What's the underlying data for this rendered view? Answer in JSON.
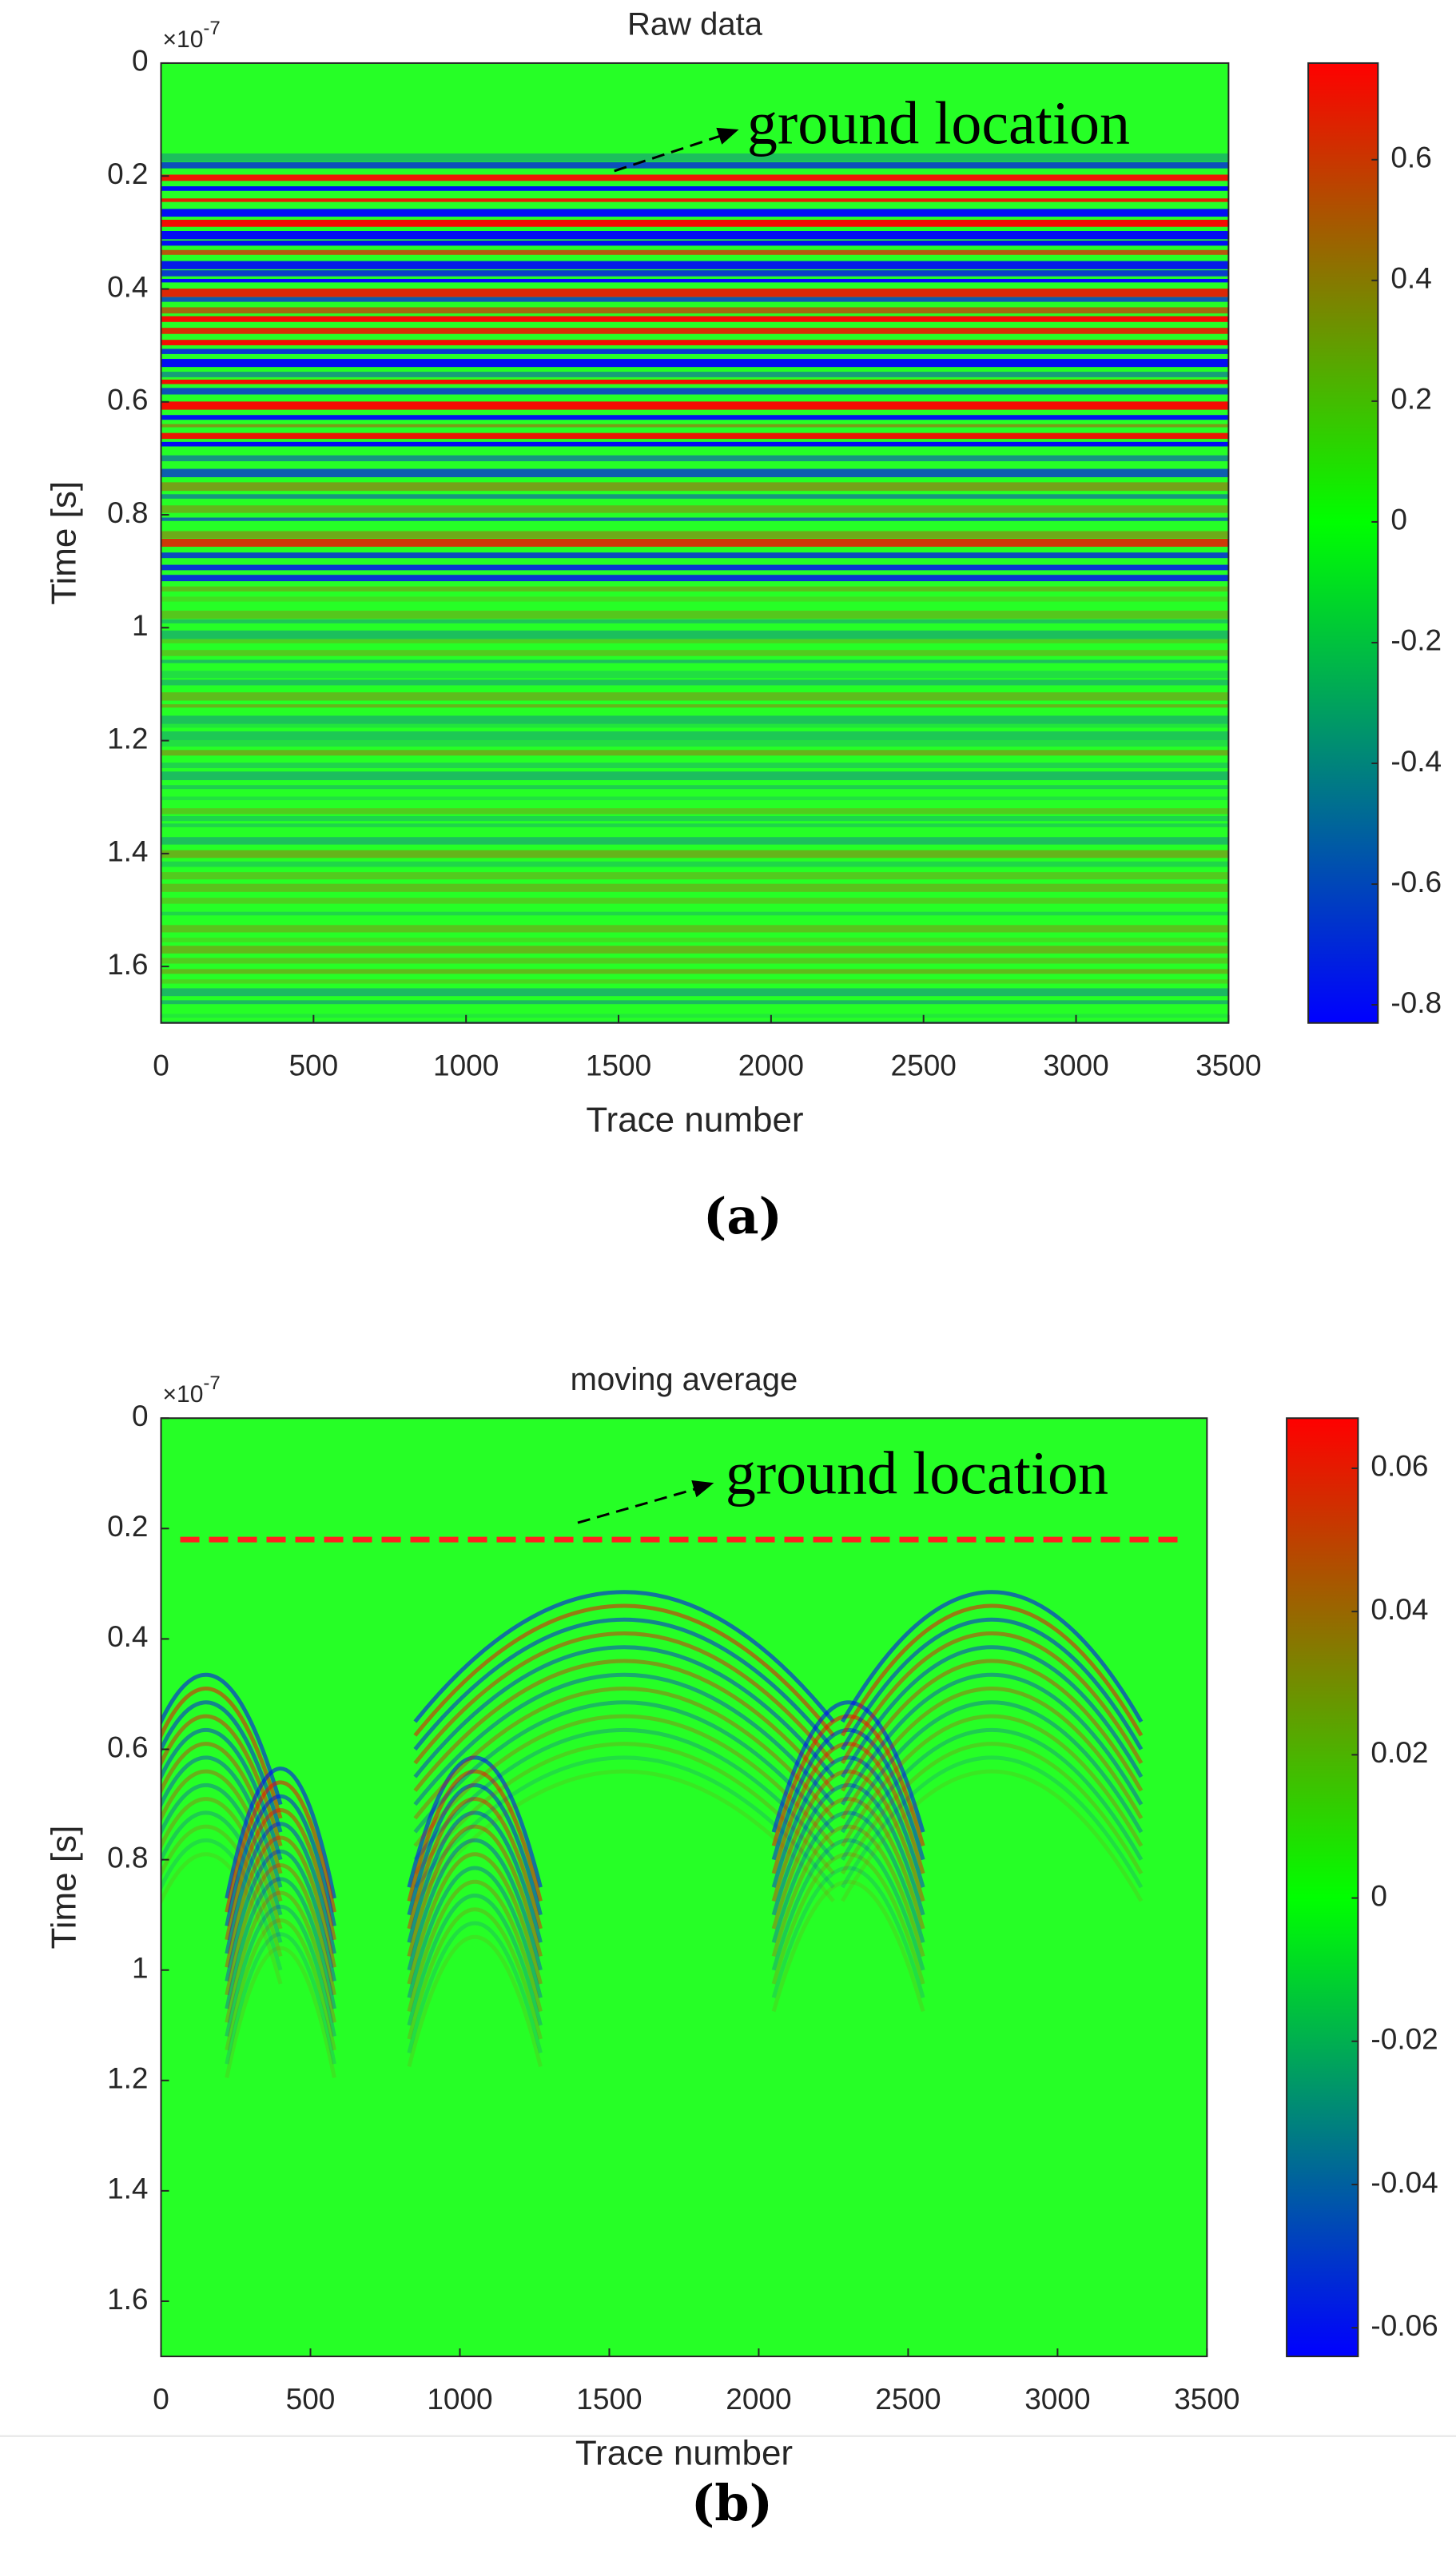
{
  "chart_data": [
    {
      "type": "heatmap",
      "title": "Raw data",
      "x_label": "Trace number",
      "y_label": "Time [s]",
      "y_multiplier": "×10",
      "y_exponent": "-7",
      "xlim": [
        0,
        3500
      ],
      "xticks": [
        0,
        500,
        1000,
        1500,
        2000,
        2500,
        3000,
        3500
      ],
      "ylim": [
        0,
        1.7
      ],
      "yticks": [
        0,
        0.2,
        0.4,
        0.6,
        0.8,
        1,
        1.2,
        1.4,
        1.6
      ],
      "clim": [
        -0.83,
        0.76
      ],
      "cticks": [
        -0.8,
        -0.6,
        -0.4,
        -0.2,
        0,
        0.2,
        0.4,
        0.6
      ],
      "colormap": [
        "#0000ff",
        "#00ff00",
        "#ff0000"
      ],
      "annotation": "ground location",
      "caption": "(a)"
    },
    {
      "type": "heatmap",
      "title": "moving average",
      "x_label": "Trace number",
      "y_label": "Time [s]",
      "y_multiplier": "×10",
      "y_exponent": "-7",
      "xlim": [
        0,
        3500
      ],
      "xticks": [
        0,
        500,
        1000,
        1500,
        2000,
        2500,
        3000,
        3500
      ],
      "ylim": [
        0,
        1.7
      ],
      "yticks": [
        0,
        0.2,
        0.4,
        0.6,
        0.8,
        1,
        1.2,
        1.4,
        1.6
      ],
      "clim": [
        -0.064,
        0.067
      ],
      "cticks": [
        -0.06,
        -0.04,
        -0.02,
        0,
        0.02,
        0.04,
        0.06
      ],
      "colormap": [
        "#0000ff",
        "#00ff00",
        "#ff0000"
      ],
      "annotation": "ground location",
      "ground_line": 0.22,
      "ground_line_color": "#ff2020",
      "caption": "(b)"
    }
  ]
}
